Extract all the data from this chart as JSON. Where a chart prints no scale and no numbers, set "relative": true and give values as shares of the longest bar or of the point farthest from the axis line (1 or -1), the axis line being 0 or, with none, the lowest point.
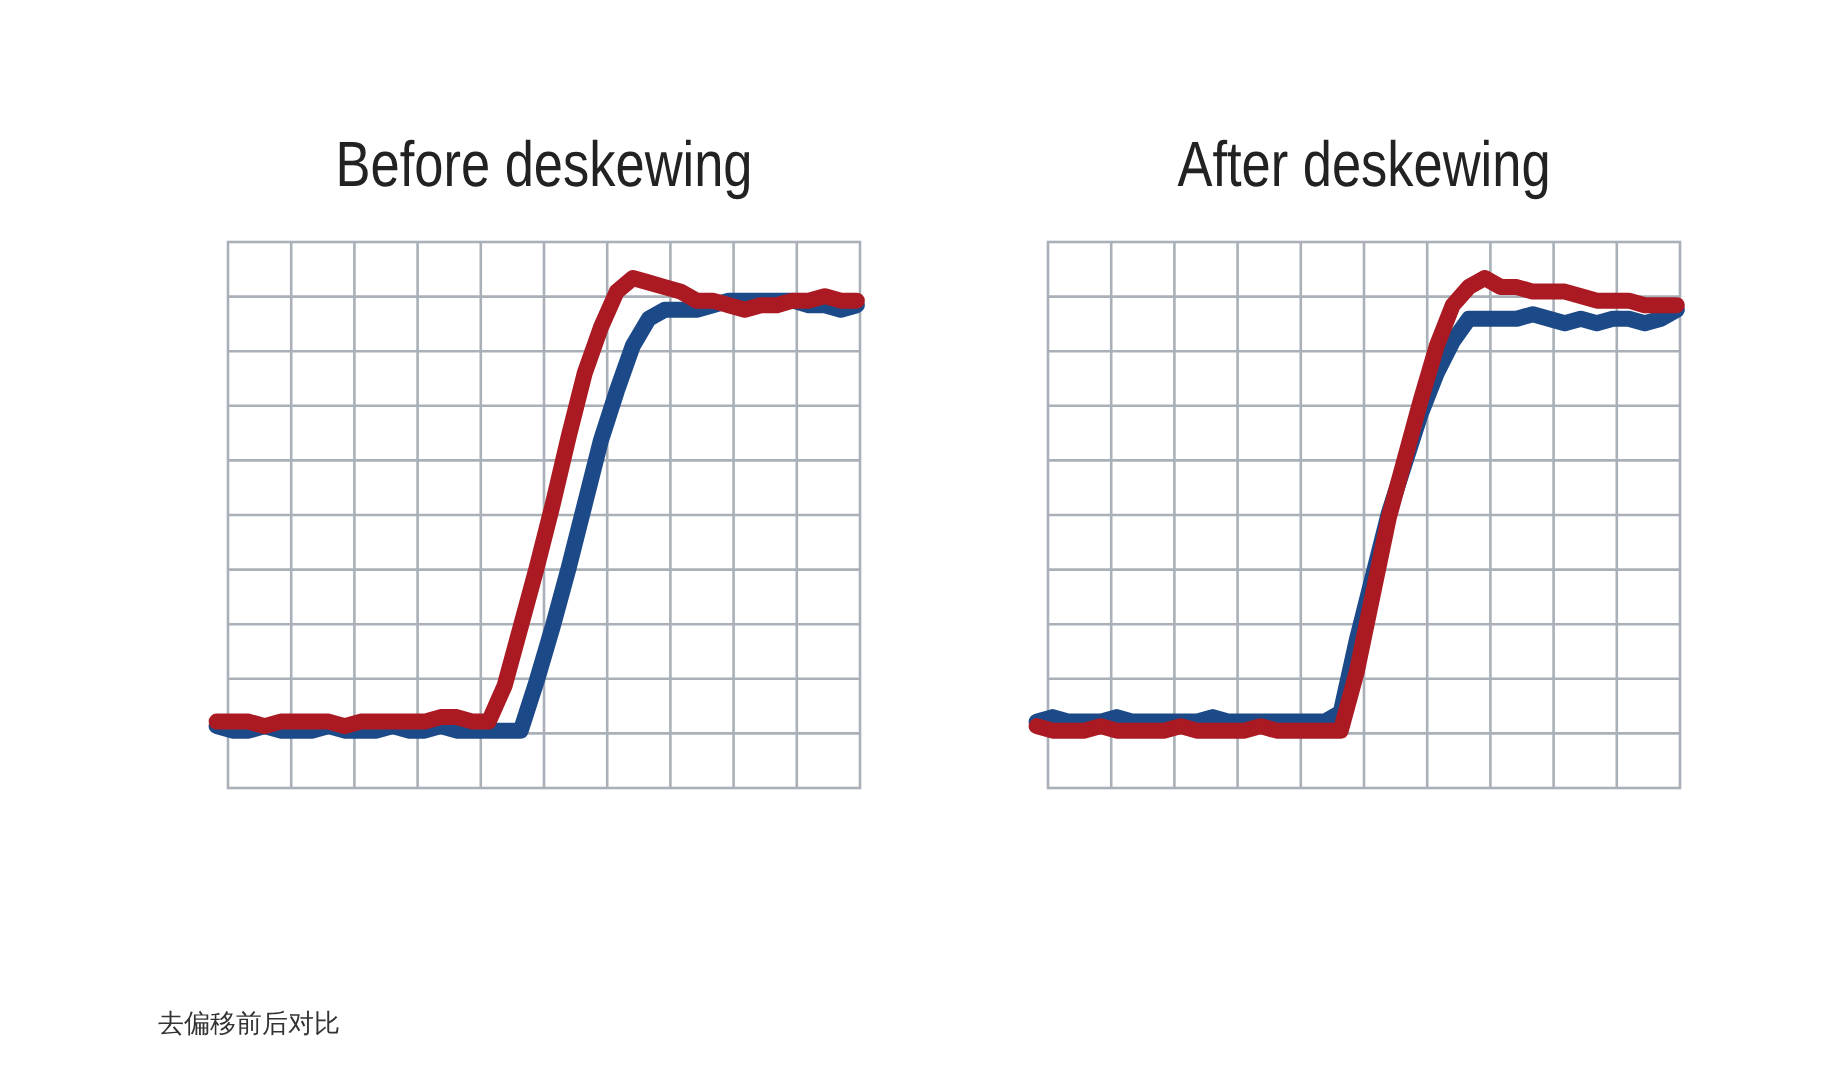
{
  "chart_data": [
    {
      "type": "line",
      "title": "Before deskewing",
      "relative": true,
      "grid": true,
      "categories": [
        null,
        null,
        null,
        null,
        null,
        null,
        null,
        null,
        null,
        null,
        null,
        null,
        null,
        null,
        null,
        null,
        null,
        null,
        null,
        null,
        null,
        null,
        null,
        null,
        null,
        null,
        null,
        null,
        null,
        null,
        null,
        null,
        null,
        null,
        null,
        null,
        null,
        null,
        null,
        null,
        null
      ],
      "series": [
        {
          "color": "#1c4a88",
          "values": [
            0.01,
            0,
            0,
            0.01,
            0,
            0,
            0,
            0.01,
            0,
            0,
            0,
            0.01,
            0,
            0,
            0.01,
            0,
            0,
            0,
            0,
            0,
            0.11,
            0.23,
            0.36,
            0.5,
            0.64,
            0.75,
            0.85,
            0.91,
            0.93,
            0.93,
            0.93,
            0.94,
            0.95,
            0.95,
            0.95,
            0.95,
            0.95,
            0.94,
            0.94,
            0.93,
            0.94
          ]
        },
        {
          "color": "#ab1a22",
          "values": [
            0.02,
            0.02,
            0.02,
            0.01,
            0.02,
            0.02,
            0.02,
            0.02,
            0.01,
            0.02,
            0.02,
            0.02,
            0.02,
            0.02,
            0.03,
            0.03,
            0.02,
            0.02,
            0.1,
            0.23,
            0.36,
            0.5,
            0.65,
            0.79,
            0.89,
            0.97,
            1,
            0.99,
            0.98,
            0.97,
            0.95,
            0.95,
            0.94,
            0.93,
            0.94,
            0.94,
            0.95,
            0.95,
            0.96,
            0.95,
            0.95
          ]
        }
      ],
      "annotations": [
        "去偏移前后对比"
      ]
    },
    {
      "type": "line",
      "title": "After deskewing",
      "relative": true,
      "grid": true,
      "categories": [
        null,
        null,
        null,
        null,
        null,
        null,
        null,
        null,
        null,
        null,
        null,
        null,
        null,
        null,
        null,
        null,
        null,
        null,
        null,
        null,
        null,
        null,
        null,
        null,
        null,
        null,
        null,
        null,
        null,
        null,
        null,
        null,
        null,
        null,
        null,
        null,
        null,
        null,
        null,
        null,
        null
      ],
      "series": [
        {
          "color": "#1c4a88",
          "values": [
            0.02,
            0.03,
            0.02,
            0.02,
            0.02,
            0.03,
            0.02,
            0.02,
            0.02,
            0.02,
            0.02,
            0.03,
            0.02,
            0.02,
            0.02,
            0.02,
            0.02,
            0.02,
            0.02,
            0.04,
            0.2,
            0.34,
            0.48,
            0.59,
            0.7,
            0.79,
            0.86,
            0.91,
            0.91,
            0.91,
            0.91,
            0.92,
            0.91,
            0.9,
            0.91,
            0.9,
            0.91,
            0.91,
            0.9,
            0.91,
            0.93
          ]
        },
        {
          "color": "#ab1a22",
          "values": [
            0.01,
            0,
            0,
            0,
            0.01,
            0,
            0,
            0,
            0,
            0.01,
            0,
            0,
            0,
            0,
            0.01,
            0,
            0,
            0,
            0,
            0,
            0.13,
            0.3,
            0.47,
            0.6,
            0.73,
            0.85,
            0.94,
            0.98,
            1,
            0.98,
            0.98,
            0.97,
            0.97,
            0.97,
            0.96,
            0.95,
            0.95,
            0.95,
            0.94,
            0.94,
            0.94
          ]
        }
      ]
    }
  ]
}
